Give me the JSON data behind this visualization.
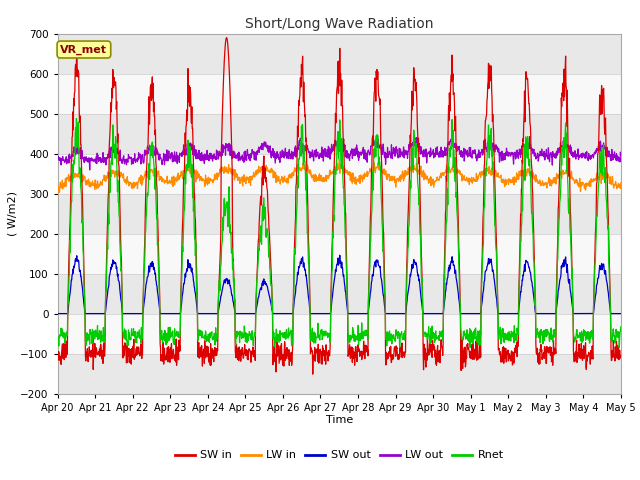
{
  "title": "Short/Long Wave Radiation",
  "xlabel": "Time",
  "ylabel": "( W/m2)",
  "ylim": [
    -200,
    700
  ],
  "yticks": [
    -200,
    -100,
    0,
    100,
    200,
    300,
    400,
    500,
    600,
    700
  ],
  "colors": {
    "SW_in": "#dd0000",
    "LW_in": "#ff8c00",
    "SW_out": "#0000cc",
    "LW_out": "#9900cc",
    "Rnet": "#00cc00"
  },
  "legend_labels": [
    "SW in",
    "LW in",
    "SW out",
    "LW out",
    "Rnet"
  ],
  "station_label": "VR_met",
  "background_color": "#ffffff",
  "n_days": 15,
  "dt_hours": 0.25,
  "band_colors": [
    "#e8e8e8",
    "#ffffff"
  ],
  "figsize": [
    6.4,
    4.8
  ],
  "dpi": 100
}
